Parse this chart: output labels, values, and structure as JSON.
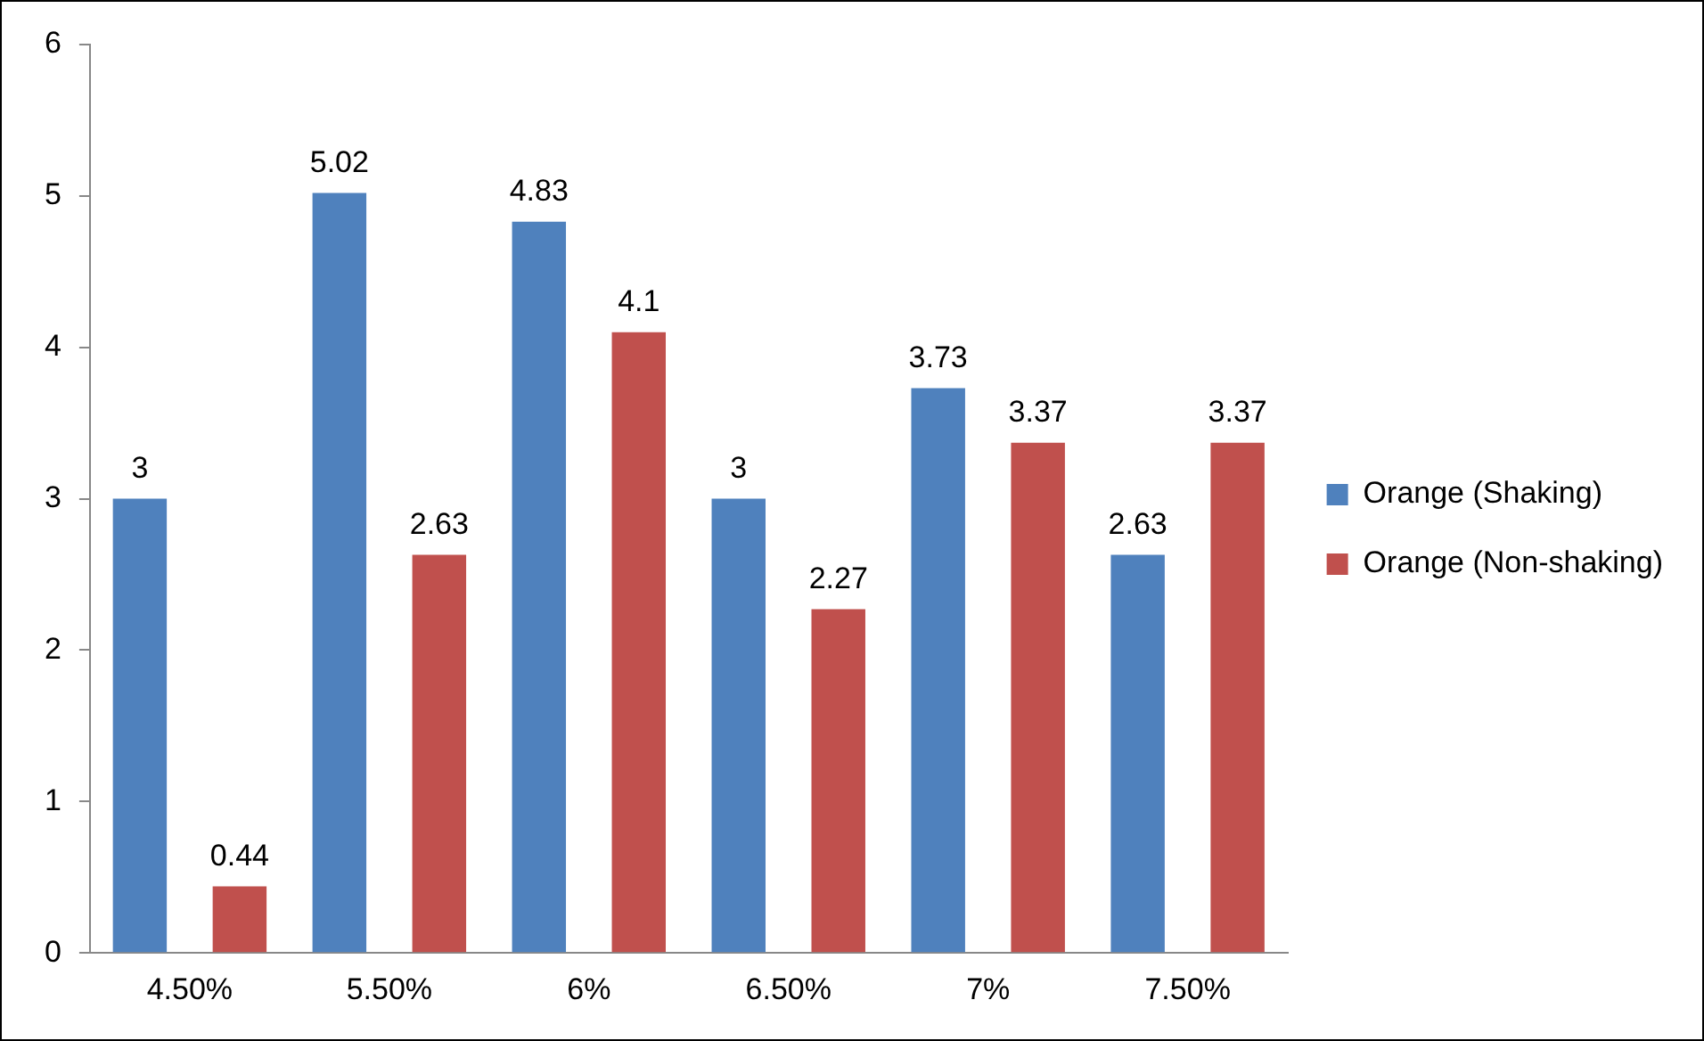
{
  "chart_data": {
    "type": "bar",
    "categories": [
      "4.50%",
      "5.50%",
      "6%",
      "6.50%",
      "7%",
      "7.50%"
    ],
    "series": [
      {
        "name": "Orange (Shaking)",
        "color": "#4f81bd",
        "values": [
          3,
          5.02,
          4.83,
          3,
          3.73,
          2.63
        ]
      },
      {
        "name": "Orange (Non-shaking)",
        "color": "#c0504d",
        "values": [
          0.44,
          2.63,
          4.1,
          2.27,
          3.37,
          3.37
        ]
      }
    ],
    "ylim": [
      0,
      6
    ],
    "yticks": [
      0,
      1,
      2,
      3,
      4,
      5,
      6
    ],
    "grid": false,
    "legend": "right",
    "data_labels": true
  }
}
